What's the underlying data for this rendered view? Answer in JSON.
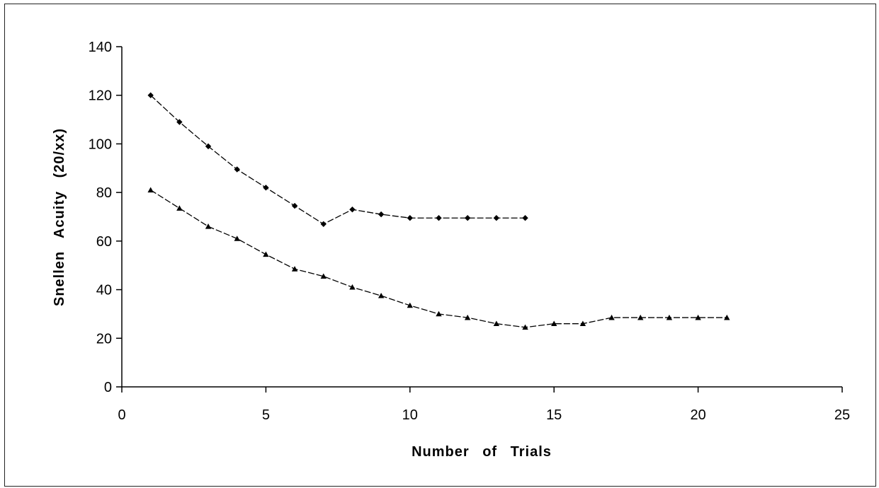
{
  "chart_data": {
    "type": "line",
    "title": "",
    "xlabel": "Number of Trials",
    "ylabel": "Snellen Acuity (20/xx)",
    "xlim": [
      0,
      25
    ],
    "ylim": [
      0,
      140
    ],
    "xticks": [
      0,
      5,
      10,
      15,
      20,
      25
    ],
    "yticks": [
      0,
      20,
      40,
      60,
      80,
      100,
      120,
      140
    ],
    "grid": false,
    "legend": "none",
    "series": [
      {
        "marker": "diamond",
        "line_style": "dashed",
        "color": "#000000",
        "x": [
          1,
          2,
          3,
          4,
          5,
          6,
          7,
          8,
          9,
          10,
          11,
          12,
          13,
          14
        ],
        "y": [
          120,
          109,
          99,
          89.5,
          82,
          74.5,
          67,
          73,
          71,
          69.5,
          69.5,
          69.5,
          69.5,
          69.5
        ]
      },
      {
        "marker": "triangle",
        "line_style": "dashed",
        "color": "#000000",
        "x": [
          1,
          2,
          3,
          4,
          5,
          6,
          7,
          8,
          9,
          10,
          11,
          12,
          13,
          14,
          15,
          16,
          17,
          18,
          19,
          20,
          21
        ],
        "y": [
          81,
          73.5,
          66,
          61,
          54.5,
          48.5,
          45.5,
          41,
          37.5,
          33.5,
          30,
          28.5,
          26,
          24.5,
          26,
          26,
          28.5,
          28.5,
          28.5,
          28.5,
          28.5
        ]
      }
    ]
  }
}
